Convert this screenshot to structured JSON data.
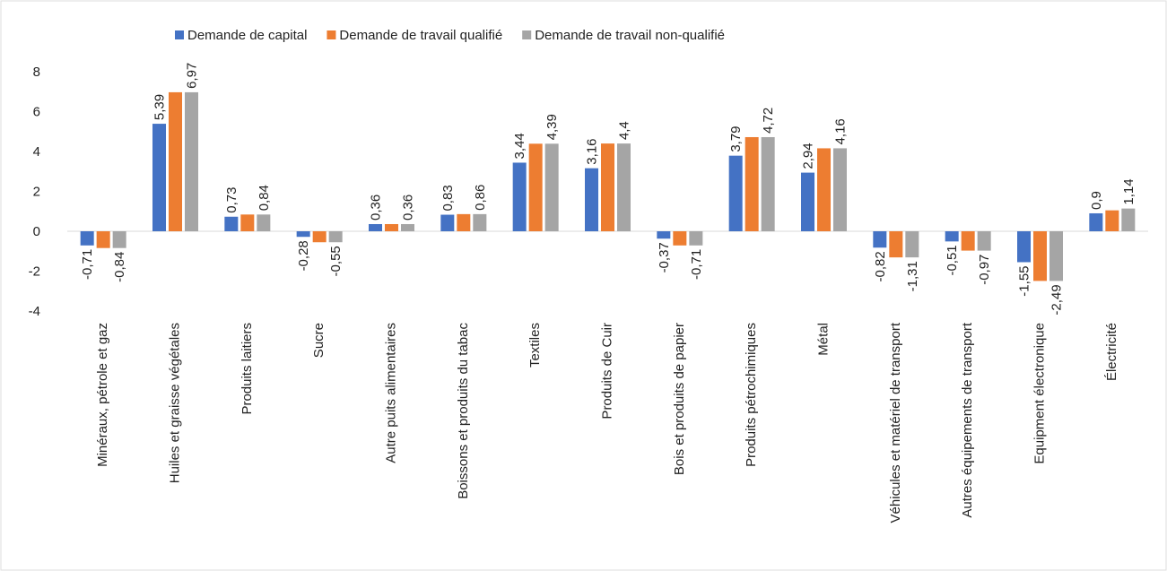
{
  "chart_data": {
    "type": "bar",
    "categories": [
      "Minéraux, pétrole et gaz",
      "Huiles et graisse végétales",
      "Produits laitiers",
      "Sucre",
      "Autre puits alimentaires",
      "Boissons et produits du tabac",
      "Textiles",
      "Produits de Cuir",
      "Bois et produits de papier",
      "Produits pétrochimiques",
      "Métal",
      "Véhicules et matériel de transport",
      "Autres équipements de transport",
      "Equipment électronique",
      "Électricité"
    ],
    "series": [
      {
        "name": "Demande de capital",
        "color": "#4472c4",
        "values": [
          -0.71,
          5.39,
          0.73,
          -0.28,
          0.36,
          0.83,
          3.44,
          3.16,
          -0.37,
          3.79,
          2.94,
          -0.82,
          -0.51,
          -1.55,
          0.9
        ],
        "value_labels": [
          "-0,71",
          "5,39",
          "0,73",
          "-0,28",
          "0,36",
          "0,83",
          "3,44",
          "3,16",
          "-0,37",
          "3,79",
          "2,94",
          "-0,82",
          "-0,51",
          "-1,55",
          "0,9"
        ]
      },
      {
        "name": "Demande de travail qualifié",
        "color": "#ed7d31",
        "values": [
          -0.84,
          6.97,
          0.84,
          -0.55,
          0.36,
          0.86,
          4.39,
          4.4,
          -0.71,
          4.72,
          4.16,
          -1.31,
          -0.97,
          -2.49,
          1.05
        ]
      },
      {
        "name": "Demande de travail non-qualifié",
        "color": "#a5a5a5",
        "values": [
          -0.84,
          6.97,
          0.84,
          -0.55,
          0.36,
          0.86,
          4.39,
          4.4,
          -0.71,
          4.72,
          4.16,
          -1.31,
          -0.97,
          -2.49,
          1.14
        ],
        "value_labels": [
          "-0,84",
          "6,97",
          "0,84",
          "-0,55",
          "0,36",
          "0,86",
          "4,39",
          "4,4",
          "-0,71",
          "4,72",
          "4,16",
          "-1,31",
          "-0,97",
          "-2,49",
          "1,14"
        ]
      }
    ],
    "ylim": [
      -4,
      8
    ],
    "yticks": [
      -4,
      -2,
      0,
      2,
      4,
      6,
      8
    ],
    "legend": "top"
  }
}
